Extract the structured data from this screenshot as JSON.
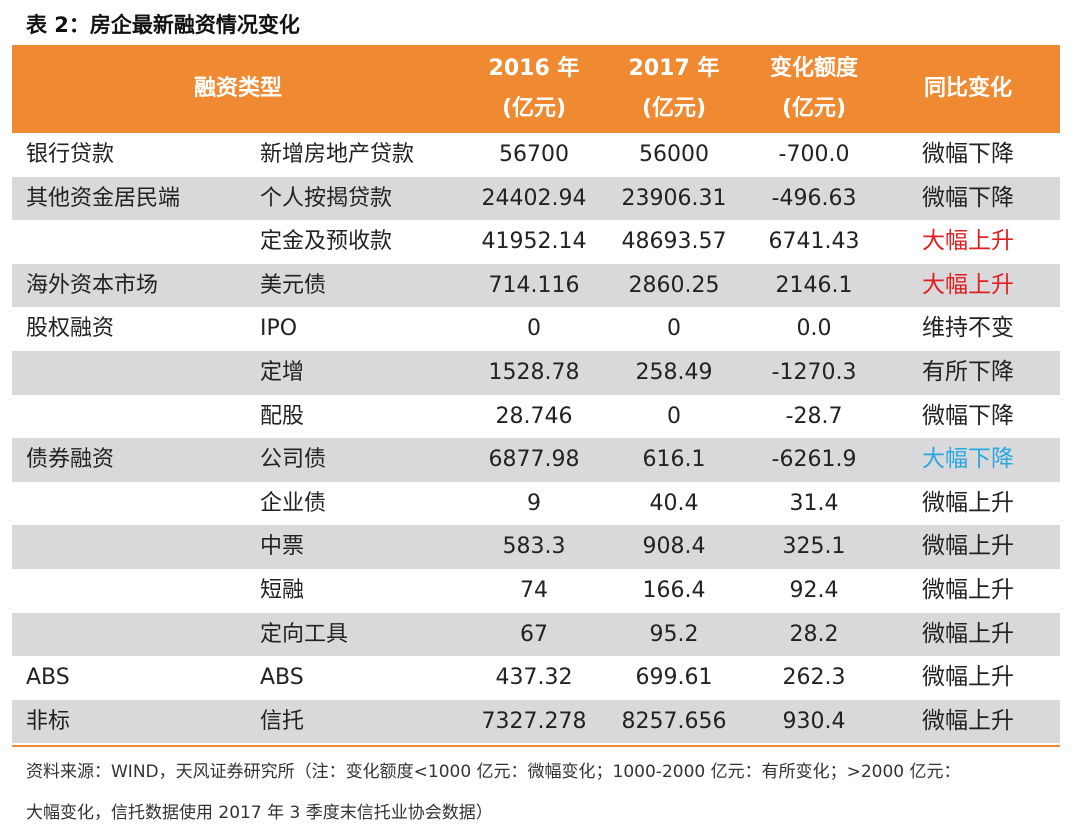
{
  "title": "表 2：房企最新融资情况变化",
  "header": {
    "type": "融资类型",
    "y2016_line1": "2016 年",
    "y2016_line2": "(亿元)",
    "y2017_line1": "2017 年",
    "y2017_line2": "(亿元)",
    "change_line1": "变化额度",
    "change_line2": "(亿元)",
    "trend": "同比变化"
  },
  "colors": {
    "header_bg": "#f08a32",
    "row_gray": "#d9d9dc",
    "trend_red": "#e02020",
    "trend_blue": "#29a8e0",
    "trend_normal": "#222222"
  },
  "rows": [
    {
      "category": "银行贷款",
      "sub": "新增房地产贷款",
      "y2016": "56700",
      "y2017": "56000",
      "change": "-700.0",
      "trend": "微幅下降",
      "tone": "normal",
      "gray": false
    },
    {
      "category": "其他资金居民端",
      "sub": "个人按揭贷款",
      "y2016": "24402.94",
      "y2017": "23906.31",
      "change": "-496.63",
      "trend": "微幅下降",
      "tone": "normal",
      "gray": true
    },
    {
      "category": "",
      "sub": "定金及预收款",
      "y2016": "41952.14",
      "y2017": "48693.57",
      "change": "6741.43",
      "trend": "大幅上升",
      "tone": "red",
      "gray": false
    },
    {
      "category": "海外资本市场",
      "sub": "美元债",
      "y2016": "714.116",
      "y2017": "2860.25",
      "change": "2146.1",
      "trend": "大幅上升",
      "tone": "red",
      "gray": true
    },
    {
      "category": "股权融资",
      "sub": "IPO",
      "y2016": "0",
      "y2017": "0",
      "change": "0.0",
      "trend": "维持不变",
      "tone": "normal",
      "gray": false
    },
    {
      "category": "",
      "sub": "定增",
      "y2016": "1528.78",
      "y2017": "258.49",
      "change": "-1270.3",
      "trend": "有所下降",
      "tone": "normal",
      "gray": true
    },
    {
      "category": "",
      "sub": "配股",
      "y2016": "28.746",
      "y2017": "0",
      "change": "-28.7",
      "trend": "微幅下降",
      "tone": "normal",
      "gray": false
    },
    {
      "category": "债券融资",
      "sub": "公司债",
      "y2016": "6877.98",
      "y2017": "616.1",
      "change": "-6261.9",
      "trend": "大幅下降",
      "tone": "blue",
      "gray": true
    },
    {
      "category": "",
      "sub": "企业债",
      "y2016": "9",
      "y2017": "40.4",
      "change": "31.4",
      "trend": "微幅上升",
      "tone": "normal",
      "gray": false
    },
    {
      "category": "",
      "sub": "中票",
      "y2016": "583.3",
      "y2017": "908.4",
      "change": "325.1",
      "trend": "微幅上升",
      "tone": "normal",
      "gray": true
    },
    {
      "category": "",
      "sub": "短融",
      "y2016": "74",
      "y2017": "166.4",
      "change": "92.4",
      "trend": "微幅上升",
      "tone": "normal",
      "gray": false
    },
    {
      "category": "",
      "sub": "定向工具",
      "y2016": "67",
      "y2017": "95.2",
      "change": "28.2",
      "trend": "微幅上升",
      "tone": "normal",
      "gray": true
    },
    {
      "category": "ABS",
      "sub": "ABS",
      "y2016": "437.32",
      "y2017": "699.61",
      "change": "262.3",
      "trend": "微幅上升",
      "tone": "normal",
      "gray": false
    },
    {
      "category": "非标",
      "sub": "信托",
      "y2016": "7327.278",
      "y2017": "8257.656",
      "change": "930.4",
      "trend": "微幅上升",
      "tone": "normal",
      "gray": true
    }
  ],
  "note_line1": "资料来源：WIND，天风证券研究所（注：变化额度<1000 亿元：微幅变化；1000-2000 亿元：有所变化；>2000 亿元：",
  "note_line2": "大幅变化，信托数据使用 2017 年 3 季度末信托业协会数据）"
}
